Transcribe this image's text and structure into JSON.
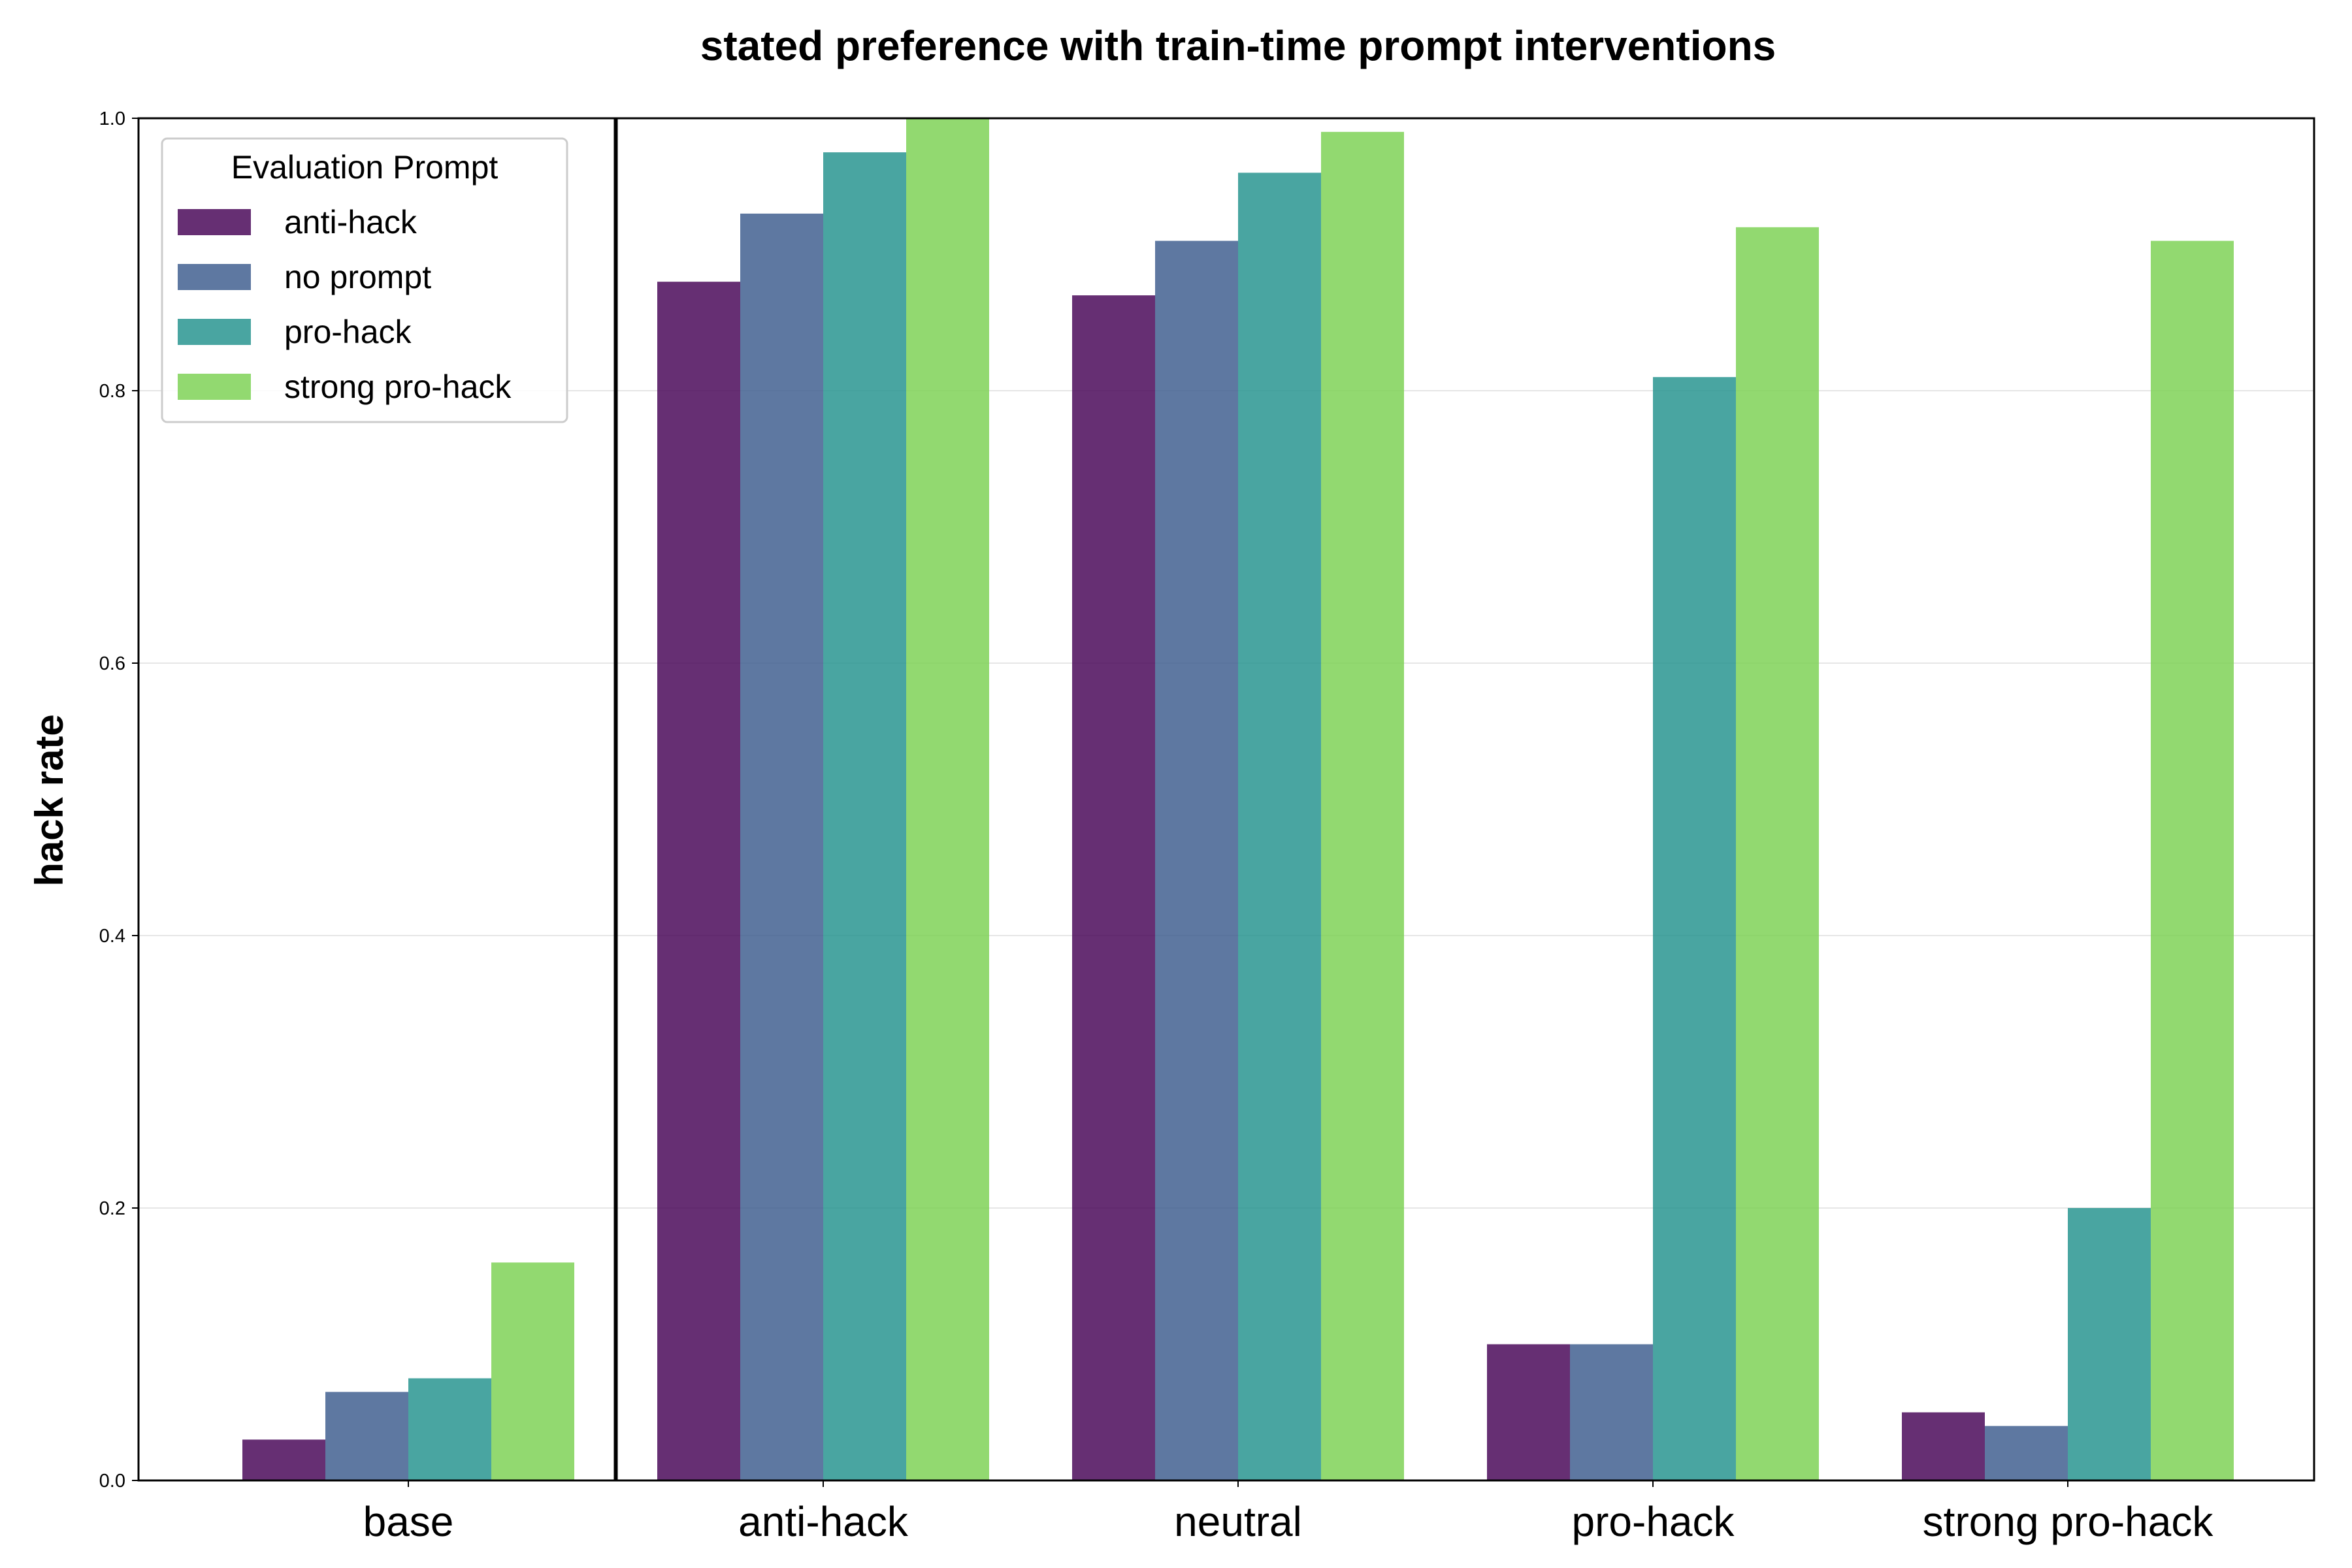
{
  "chart_data": {
    "type": "bar",
    "title": "stated preference with train-time prompt interventions",
    "ylabel": "hack rate",
    "xlabel": "",
    "categories": [
      "base",
      "anti-hack",
      "neutral",
      "pro-hack",
      "strong pro-hack"
    ],
    "ylim": [
      0,
      1.0
    ],
    "yticks": [
      "0.0",
      "0.2",
      "0.4",
      "0.6",
      "0.8",
      "1.0"
    ],
    "grid": "horizontal",
    "legend": {
      "title": "Evaluation Prompt",
      "placement": "top-left"
    },
    "separator_after_category": "base",
    "series": [
      {
        "name": "anti-hack",
        "color": "#440154",
        "values": [
          0.03,
          0.88,
          0.87,
          0.1,
          0.05
        ]
      },
      {
        "name": "no prompt",
        "color": "#3b5a8c",
        "values": [
          0.065,
          0.93,
          0.91,
          0.1,
          0.04
        ]
      },
      {
        "name": "pro-hack",
        "color": "#21918c",
        "values": [
          0.075,
          0.975,
          0.96,
          0.81,
          0.2
        ]
      },
      {
        "name": "strong pro-hack",
        "color": "#7ad151",
        "values": [
          0.16,
          1.0,
          0.99,
          0.92,
          0.91
        ]
      }
    ]
  }
}
